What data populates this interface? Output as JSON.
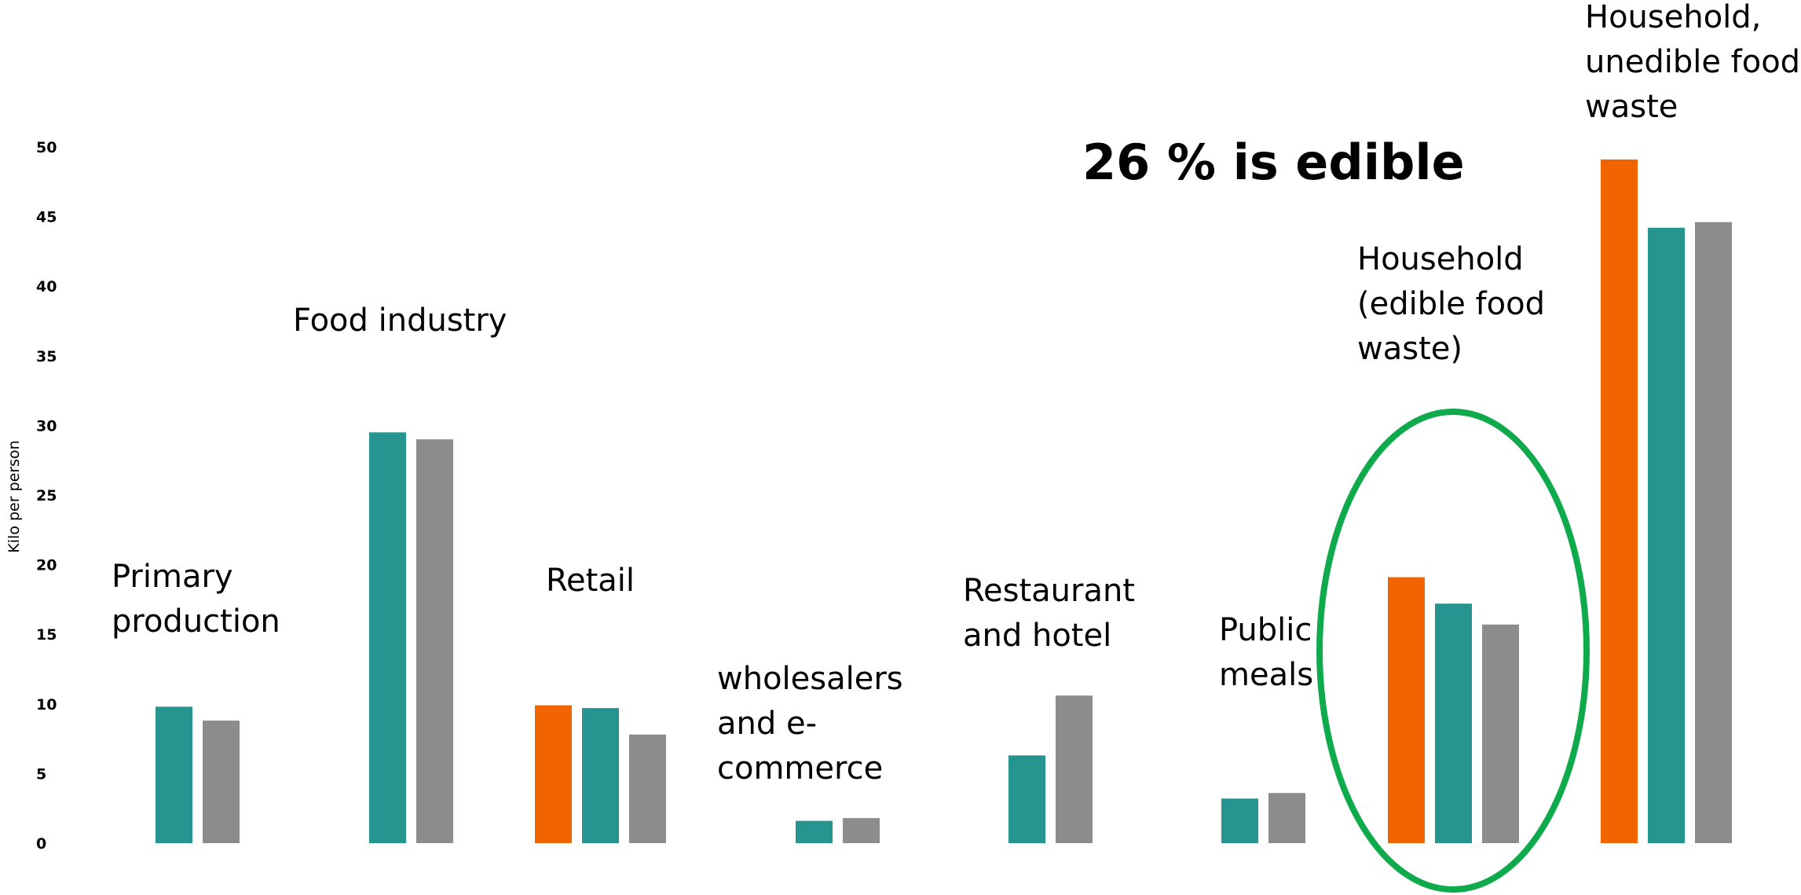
{
  "chart_data": {
    "type": "bar",
    "ylabel": "Kilo per person",
    "ylim": [
      0,
      50
    ],
    "yticks": [
      0,
      5,
      10,
      15,
      20,
      25,
      30,
      35,
      40,
      45,
      50
    ],
    "annotation": "26 % is edible",
    "colors": {
      "orange": "#f26400",
      "teal": "#26958f",
      "gray": "#8c8c8c",
      "highlight": "#0eaa4b"
    },
    "highlighted_category_index": 6,
    "categories": [
      {
        "label": [
          "Primary",
          "production"
        ],
        "bars": [
          {
            "color": "teal",
            "value": 9.8
          },
          {
            "color": "gray",
            "value": 8.8
          }
        ]
      },
      {
        "label": [
          "Food industry"
        ],
        "bars": [
          {
            "color": "teal",
            "value": 29.5
          },
          {
            "color": "gray",
            "value": 29.0
          }
        ]
      },
      {
        "label": [
          "Retail"
        ],
        "bars": [
          {
            "color": "orange",
            "value": 9.9
          },
          {
            "color": "teal",
            "value": 9.7
          },
          {
            "color": "gray",
            "value": 7.8
          }
        ]
      },
      {
        "label": [
          "wholesalers",
          "and e-",
          "commerce"
        ],
        "bars": [
          {
            "color": "teal",
            "value": 1.6
          },
          {
            "color": "gray",
            "value": 1.8
          }
        ]
      },
      {
        "label": [
          "Restaurant",
          "and hotel"
        ],
        "bars": [
          {
            "color": "teal",
            "value": 6.3
          },
          {
            "color": "gray",
            "value": 10.6
          }
        ]
      },
      {
        "label": [
          "Public",
          "meals"
        ],
        "bars": [
          {
            "color": "teal",
            "value": 3.2
          },
          {
            "color": "gray",
            "value": 3.6
          }
        ]
      },
      {
        "label": [
          "Household",
          "(edible food",
          "waste)"
        ],
        "bars": [
          {
            "color": "orange",
            "value": 19.1
          },
          {
            "color": "teal",
            "value": 17.2
          },
          {
            "color": "gray",
            "value": 15.7
          }
        ]
      },
      {
        "label": [
          "Household,",
          "unedible food",
          "waste"
        ],
        "bars": [
          {
            "color": "orange",
            "value": 49.1
          },
          {
            "color": "teal",
            "value": 44.2
          },
          {
            "color": "gray",
            "value": 44.6
          }
        ]
      }
    ]
  }
}
